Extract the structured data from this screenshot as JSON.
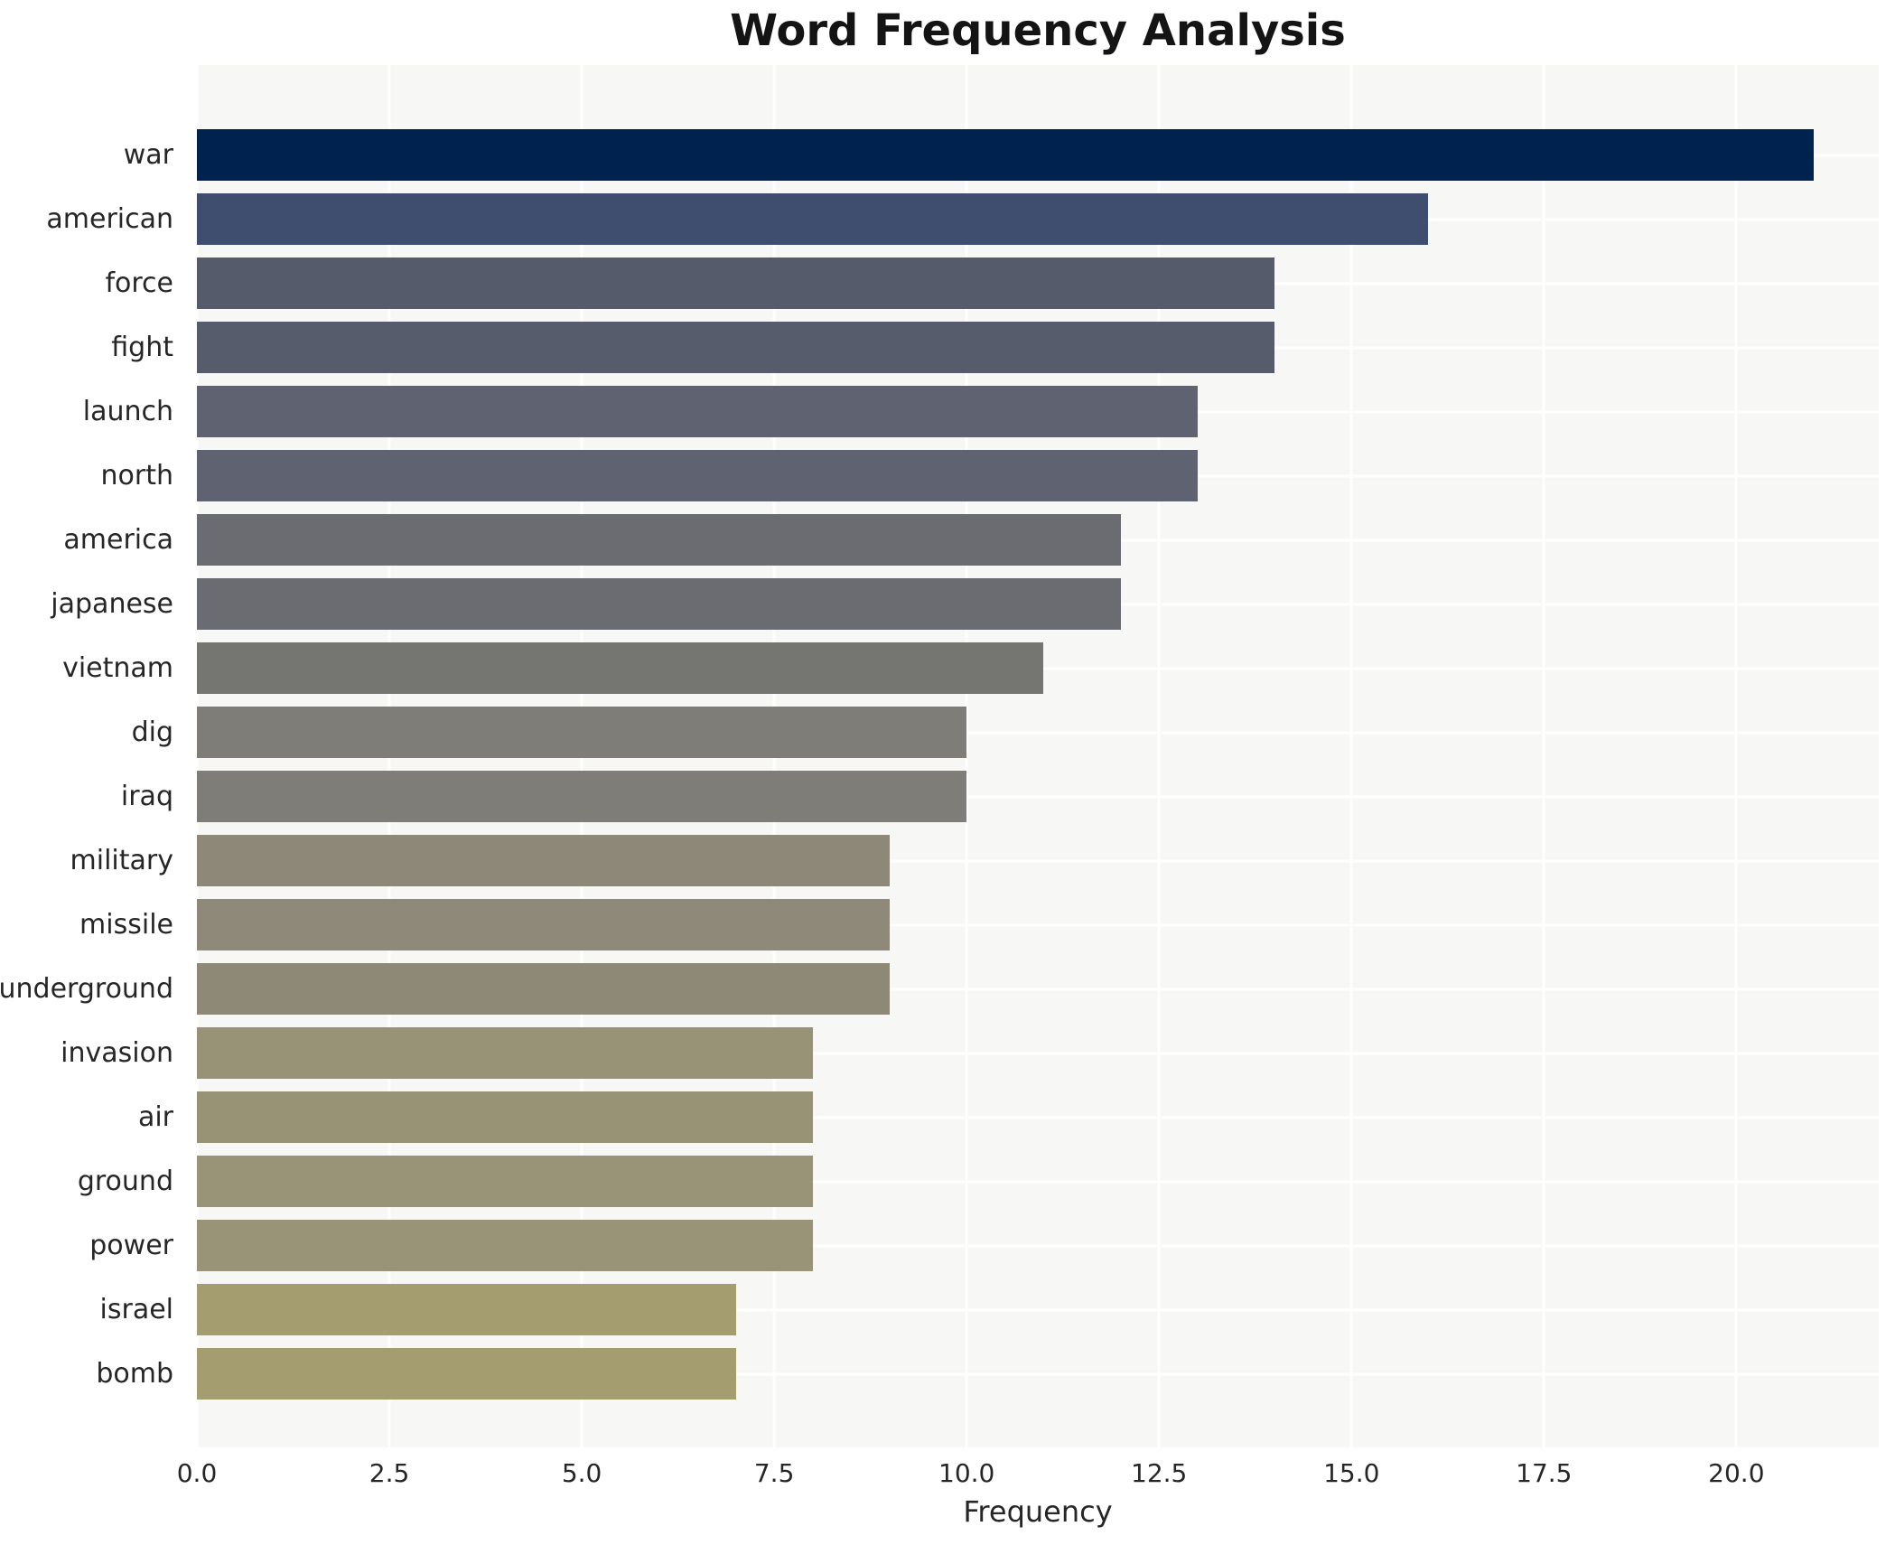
{
  "chart_data": {
    "type": "bar",
    "orientation": "horizontal",
    "title": "Word Frequency Analysis",
    "xlabel": "Frequency",
    "ylabel": "",
    "categories": [
      "war",
      "american",
      "force",
      "fight",
      "launch",
      "north",
      "america",
      "japanese",
      "vietnam",
      "dig",
      "iraq",
      "military",
      "missile",
      "underground",
      "invasion",
      "air",
      "ground",
      "power",
      "israel",
      "bomb"
    ],
    "values": [
      21,
      16,
      14,
      14,
      13,
      13,
      12,
      12,
      11,
      10,
      10,
      9,
      9,
      9,
      8,
      8,
      8,
      8,
      7,
      7
    ],
    "bar_colors": [
      "#00224e",
      "#3f4e6e",
      "#555b6b",
      "#565c6c",
      "#5f6270",
      "#5f6270",
      "#6b6c71",
      "#6b6c71",
      "#757572",
      "#7f7d78",
      "#7f7d78",
      "#8d8878",
      "#8e8978",
      "#8e8977",
      "#989276",
      "#999376",
      "#999377",
      "#999377",
      "#a49d70",
      "#a49d70"
    ],
    "xticks": [
      0,
      2.5,
      5,
      7.5,
      10,
      12.5,
      15,
      17.5,
      20
    ],
    "xtick_labels": [
      "0.0",
      "2.5",
      "5.0",
      "7.5",
      "10.0",
      "12.5",
      "15.0",
      "17.5",
      "20.0"
    ],
    "xlim": [
      0,
      21.85
    ],
    "grid": true,
    "legend": false,
    "plot_bg": "#f7f7f6",
    "grid_color": "#ffffff",
    "figure_bg": "#ffffff",
    "text_color": "#262626",
    "title_color": "#141414"
  }
}
